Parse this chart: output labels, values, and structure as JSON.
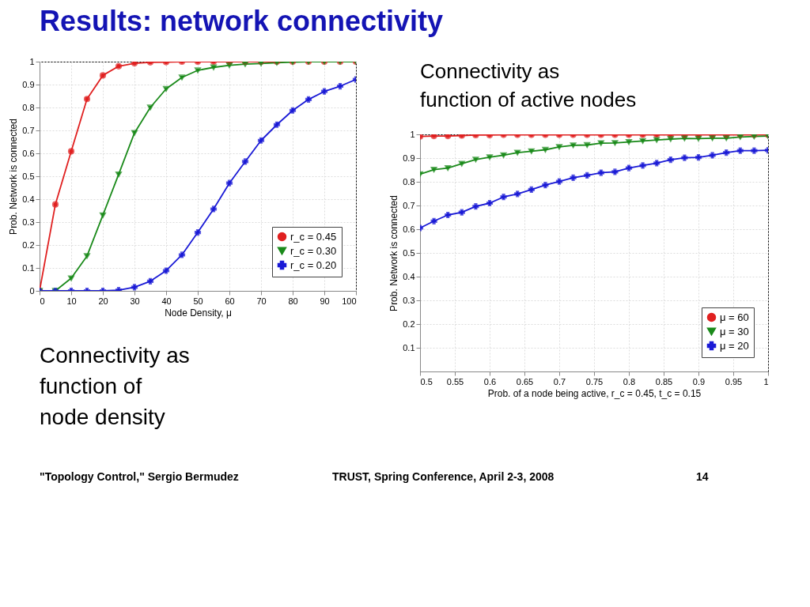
{
  "chart_data": [
    {
      "type": "line",
      "title": "Results: network connectivity",
      "xlabel": "Node Density, μ",
      "ylabel": "Prob. Network is connected",
      "annotations": [
        "Connectivity as\nfunction of\nnode density",
        "\"Topology Control,\" Sergio Bermudez",
        "TRUST, Spring Conference, April 2-3, 2008",
        "14"
      ],
      "x": [
        0,
        5,
        10,
        15,
        20,
        25,
        30,
        35,
        40,
        45,
        50,
        55,
        60,
        65,
        70,
        75,
        80,
        85,
        90,
        95,
        100
      ],
      "series": [
        {
          "name": "r_c = 0.20",
          "color": "#1a1ad6",
          "marker": "cross",
          "values": [
            0,
            0,
            0,
            0,
            0,
            0.003,
            0.016,
            0.042,
            0.088,
            0.157,
            0.255,
            0.357,
            0.47,
            0.564,
            0.656,
            0.725,
            0.787,
            0.835,
            0.87,
            0.893,
            0.922
          ]
        },
        {
          "name": "r_c = 0.30",
          "color": "#1a8a1a",
          "marker": "triangle-down",
          "values": [
            0,
            0,
            0.055,
            0.152,
            0.33,
            0.508,
            0.689,
            0.8,
            0.881,
            0.931,
            0.962,
            0.975,
            0.984,
            0.989,
            0.992,
            0.995,
            0.998,
            1,
            1,
            1,
            1
          ]
        },
        {
          "name": "r_c = 0.45",
          "color": "#e02020",
          "marker": "circle",
          "values": [
            0,
            0.377,
            0.609,
            0.837,
            0.94,
            0.98,
            0.993,
            0.997,
            0.998,
            1,
            1,
            1,
            1,
            1,
            1,
            1,
            1,
            1,
            1,
            1,
            1
          ]
        }
      ],
      "xlim": [
        0,
        100
      ],
      "xticks": [
        0,
        10,
        20,
        30,
        40,
        50,
        60,
        70,
        80,
        90,
        100
      ],
      "ylim": [
        0,
        1
      ],
      "yticks": [
        0,
        0.1,
        0.2,
        0.3,
        0.4,
        0.5,
        0.6,
        0.7,
        0.8,
        0.9,
        1
      ],
      "grid": true,
      "legend": "bottom right"
    },
    {
      "type": "line",
      "xlabel": "Prob. of a node being active, r_c = 0.45, t_c = 0.15",
      "ylabel": "Prob. Network is connected",
      "annotations": [
        "Connectivity as\nfunction of active nodes"
      ],
      "x": [
        0.5,
        0.52,
        0.54,
        0.56,
        0.58,
        0.6,
        0.62,
        0.64,
        0.66,
        0.68,
        0.7,
        0.72,
        0.74,
        0.76,
        0.78,
        0.8,
        0.82,
        0.84,
        0.86,
        0.88,
        0.9,
        0.92,
        0.94,
        0.96,
        0.98,
        1
      ],
      "series": [
        {
          "name": "μ = 20",
          "color": "#1a1ad6",
          "marker": "cross",
          "values": [
            0.605,
            0.634,
            0.66,
            0.671,
            0.696,
            0.71,
            0.736,
            0.749,
            0.767,
            0.786,
            0.801,
            0.817,
            0.827,
            0.838,
            0.842,
            0.858,
            0.869,
            0.879,
            0.893,
            0.901,
            0.903,
            0.912,
            0.923,
            0.931,
            0.931,
            0.933
          ]
        },
        {
          "name": "μ = 30",
          "color": "#1a8a1a",
          "marker": "triangle-down",
          "values": [
            0.832,
            0.851,
            0.858,
            0.876,
            0.894,
            0.904,
            0.912,
            0.923,
            0.929,
            0.935,
            0.947,
            0.954,
            0.955,
            0.963,
            0.964,
            0.968,
            0.972,
            0.976,
            0.98,
            0.983,
            0.982,
            0.984,
            0.984,
            0.989,
            0.991,
            0.993
          ]
        },
        {
          "name": "μ = 60",
          "color": "#e02020",
          "marker": "circle",
          "values": [
            0.991,
            0.993,
            0.993,
            0.995,
            0.997,
            0.997,
            0.998,
            0.998,
            0.998,
            0.998,
            0.998,
            0.998,
            0.998,
            0.998,
            0.998,
            0.998,
            0.998,
            0.998,
            0.998,
            0.998,
            0.998,
            0.998,
            0.998,
            0.998,
            0.998,
            0.998
          ]
        }
      ],
      "xlim": [
        0.5,
        1
      ],
      "xticks": [
        0.5,
        0.55,
        0.6,
        0.65,
        0.7,
        0.75,
        0.8,
        0.85,
        0.9,
        0.95,
        1
      ],
      "ylim": [
        0,
        1
      ],
      "yticks": [
        0.1,
        0.2,
        0.3,
        0.4,
        0.5,
        0.6,
        0.7,
        0.8,
        0.9,
        1
      ],
      "grid": true,
      "legend": "bottom right"
    }
  ]
}
